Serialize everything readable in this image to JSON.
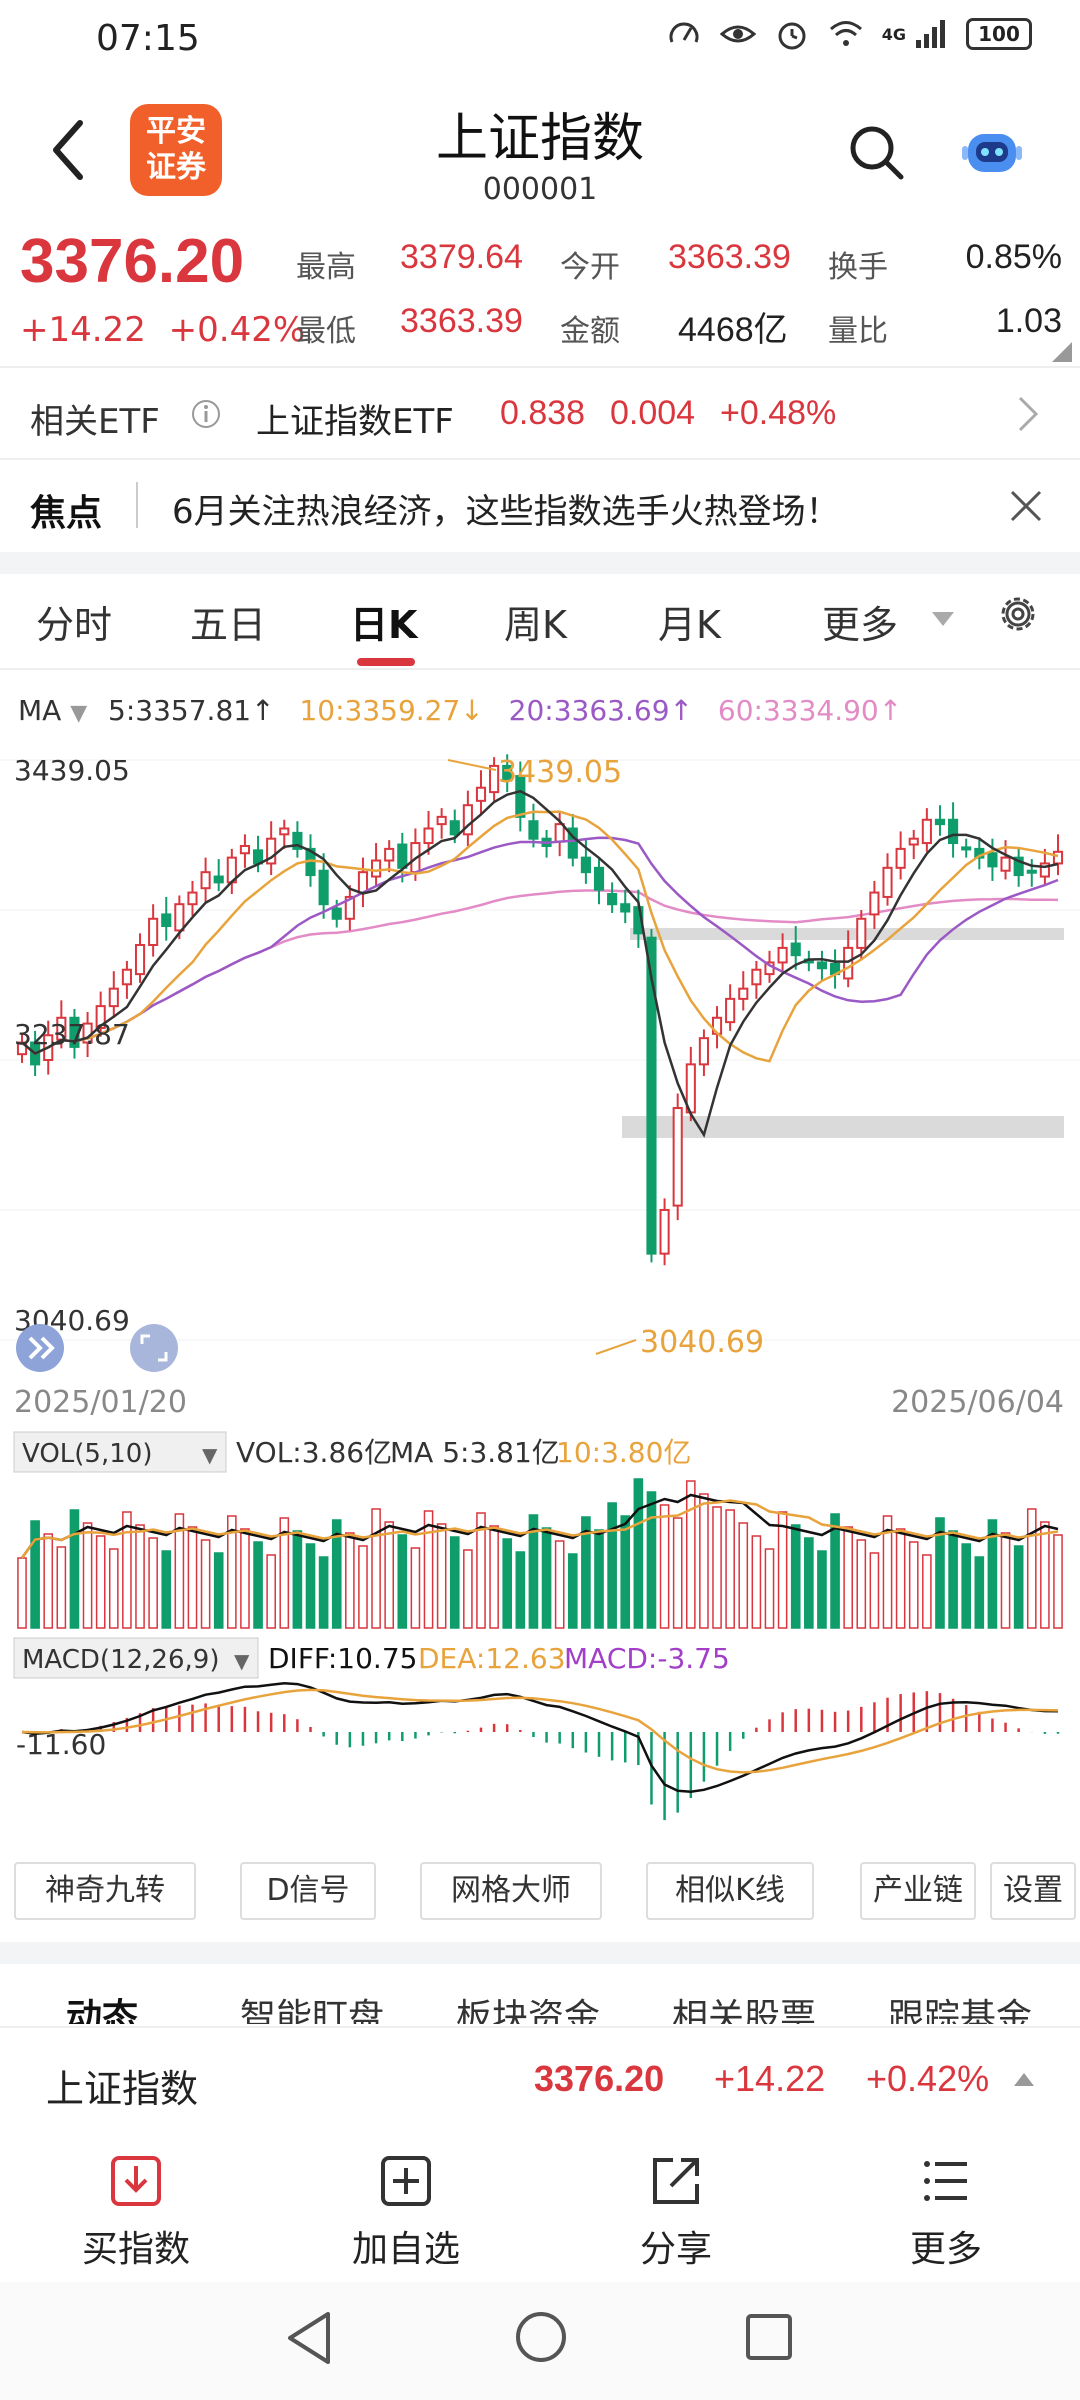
{
  "status": {
    "time": "07:15",
    "battery": "100",
    "signal_label": "4G"
  },
  "header": {
    "title": "上证指数",
    "code": "000001",
    "logo_line1": "平安",
    "logo_line2": "证券"
  },
  "quote": {
    "price": "3376.20",
    "change": "+14.22",
    "change_pct": "+0.42%",
    "high_label": "最高",
    "high": "3379.64",
    "open_label": "今开",
    "open": "3363.39",
    "turnover_label": "换手",
    "turnover": "0.85%",
    "low_label": "最低",
    "low": "3363.39",
    "amount_label": "金额",
    "amount": "4468亿",
    "vol_ratio_label": "量比",
    "vol_ratio": "1.03"
  },
  "etf": {
    "label": "相关ETF",
    "name": "上证指数ETF",
    "price": "0.838",
    "change": "0.004",
    "pct": "+0.48%"
  },
  "focus": {
    "label": "焦点",
    "text": "6月关注热浪经济，这些指数选手火热登场！"
  },
  "tabs": [
    "分时",
    "五日",
    "日K",
    "周K",
    "月K",
    "更多"
  ],
  "active_tab": "日K",
  "ma": {
    "label": "MA",
    "ma5": "5:3357.81↑",
    "ma10": "10:3359.27↓",
    "ma20": "20:3363.69↑",
    "ma60": "60:3334.90↑"
  },
  "chart_data": {
    "type": "candlestick",
    "y_max_label": "3439.05",
    "y_min_label": "3040.69",
    "y_mid_label": "3237.87",
    "ylim": [
      3040.69,
      3439.05
    ],
    "high_marker": "3439.05",
    "low_marker": "3040.69",
    "start_date": "2025/01/20",
    "end_date": "2025/06/04",
    "vol_legend": {
      "label": "VOL(5,10)",
      "vol": "VOL:3.86亿",
      "ma5": "MA 5:3.81亿",
      "ma10": "10:3.80亿"
    },
    "macd_legend": {
      "label": "MACD(12,26,9)",
      "diff": "DIFF:10.75",
      "dea": "DEA:12.63",
      "macd": "MACD:-3.75",
      "axis_label": "-11.60"
    },
    "closes": [
      3245,
      3230,
      3250,
      3262,
      3242,
      3258,
      3270,
      3282,
      3295,
      3312,
      3330,
      3325,
      3340,
      3348,
      3362,
      3355,
      3372,
      3380,
      3368,
      3385,
      3392,
      3378,
      3360,
      3340,
      3330,
      3345,
      3362,
      3370,
      3378,
      3365,
      3382,
      3392,
      3400,
      3388,
      3408,
      3420,
      3435,
      3425,
      3400,
      3385,
      3380,
      3395,
      3372,
      3362,
      3350,
      3340,
      3335,
      3320,
      3100,
      3130,
      3200,
      3230,
      3248,
      3262,
      3275,
      3282,
      3295,
      3300,
      3310,
      3305,
      3300,
      3296,
      3292,
      3310,
      3330,
      3348,
      3365,
      3378,
      3385,
      3398,
      3395,
      3382,
      3378,
      3372,
      3366,
      3372,
      3360,
      3362,
      3368,
      3376
    ],
    "colors": {
      "up": "#d9363e",
      "down": "#0f9d6b",
      "ma5": "#333333",
      "ma10": "#e8a33c",
      "ma20": "#9b59c5",
      "ma60": "#e38bc6"
    }
  },
  "tools": [
    "神奇九转",
    "D信号",
    "网格大师",
    "相似K线",
    "产业链",
    "设置"
  ],
  "info_tabs": [
    "动态",
    "智能盯盘",
    "板块资金",
    "相关股票",
    "跟踪基金"
  ],
  "ticker": {
    "name": "上证指数",
    "price": "3376.20",
    "change": "+14.22",
    "pct": "+0.42%"
  },
  "actions": [
    {
      "label": "买指数",
      "icon": "download-box-icon"
    },
    {
      "label": "加自选",
      "icon": "plus-box-icon"
    },
    {
      "label": "分享",
      "icon": "share-icon"
    },
    {
      "label": "更多",
      "icon": "menu-icon"
    }
  ]
}
